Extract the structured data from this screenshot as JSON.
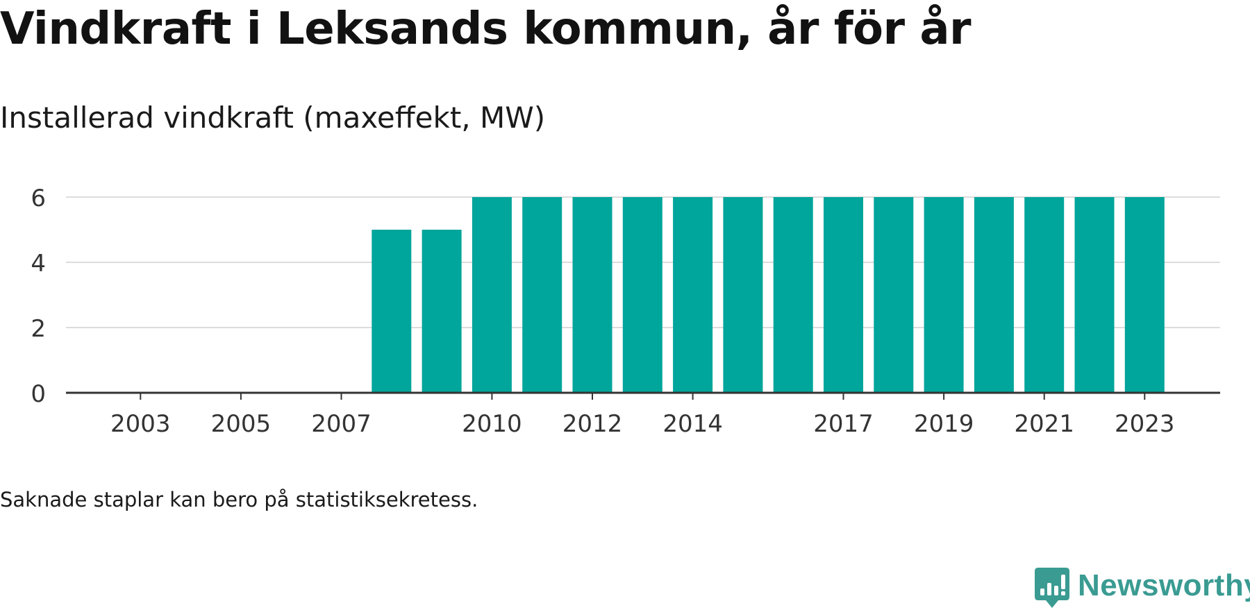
{
  "title": "Vindkraft i Leksands kommun, år för år",
  "subtitle": "Installerad vindkraft (maxeffekt, MW)",
  "note": "Saknade staplar kan bero på statistiksekretess.",
  "brand": {
    "name": "Newsworthy",
    "icon": "newsworthy-logo-icon",
    "color": "#3a9b92"
  },
  "chart_data": {
    "type": "bar",
    "categories": [
      "2002",
      "2003",
      "2004",
      "2005",
      "2006",
      "2007",
      "2008",
      "2009",
      "2010",
      "2011",
      "2012",
      "2013",
      "2014",
      "2015",
      "2016",
      "2017",
      "2018",
      "2019",
      "2020",
      "2021",
      "2022",
      "2023"
    ],
    "values": [
      0,
      0,
      0,
      0,
      0,
      0,
      5,
      5,
      6,
      6,
      6,
      6,
      6,
      6,
      6,
      6,
      6,
      6,
      6,
      6,
      6,
      6
    ],
    "x_tick_labels": [
      "2003",
      "2005",
      "2007",
      "2010",
      "2012",
      "2014",
      "2017",
      "2019",
      "2021",
      "2023"
    ],
    "y_ticks": [
      0,
      2,
      4,
      6
    ],
    "ylim": [
      0,
      6
    ],
    "grid": true,
    "bar_color": "#00a59b",
    "legend": "none"
  }
}
